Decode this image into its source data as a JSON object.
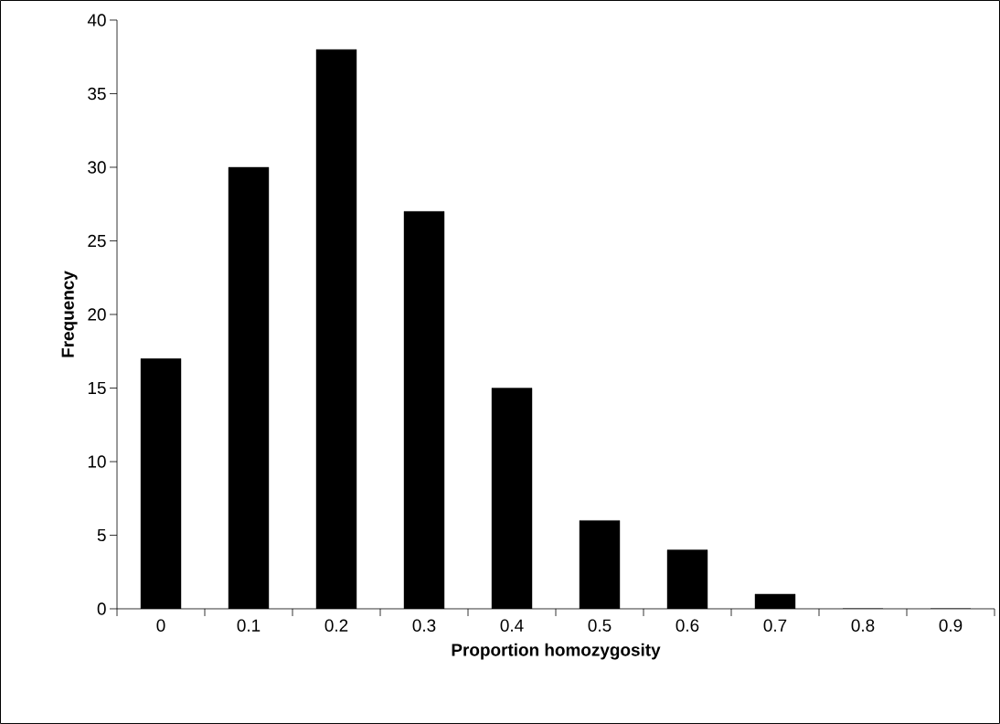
{
  "chart_data": {
    "type": "bar",
    "xlabel": "Proportion homozygosity",
    "ylabel": "Frequency",
    "categories": [
      "0",
      "0.1",
      "0.2",
      "0.3",
      "0.4",
      "0.5",
      "0.6",
      "0.7",
      "0.8",
      "0.9"
    ],
    "values": [
      17,
      30,
      38,
      27,
      15,
      6,
      4,
      1,
      0,
      0
    ],
    "color": "#000000",
    "ylim": [
      0,
      40
    ],
    "yticks": [
      0,
      5,
      10,
      15,
      20,
      25,
      30,
      35,
      40
    ]
  }
}
